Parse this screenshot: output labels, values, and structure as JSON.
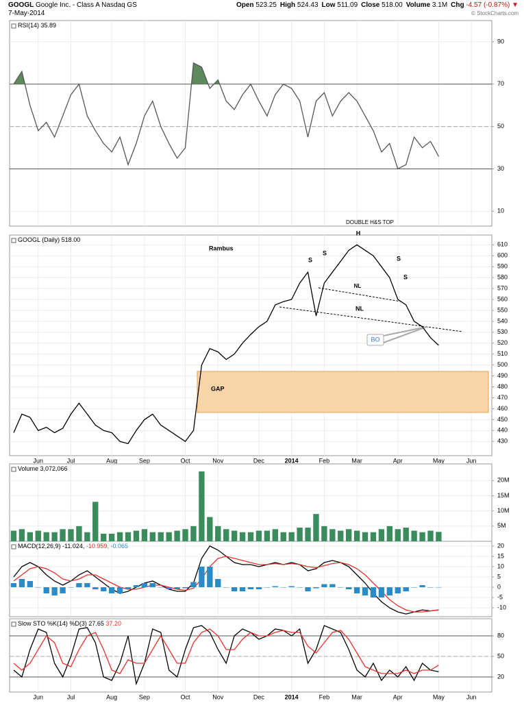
{
  "header": {
    "symbol": "GOOGL",
    "name": "Google Inc. - Class A Nasdaq GS",
    "date": "7-May-2014",
    "source": "© StockCharts.com",
    "quote": [
      {
        "label": "Open",
        "value": "523.25"
      },
      {
        "label": "High",
        "value": "524.43"
      },
      {
        "label": "Low",
        "value": "511.09"
      },
      {
        "label": "Close",
        "value": "518.00"
      },
      {
        "label": "Volume",
        "value": "3.1M"
      },
      {
        "label": "Chg",
        "value": "-4.57 (-0.87%)",
        "color": "#d01010"
      }
    ]
  },
  "chart_data": [
    {
      "type": "line",
      "title": "RSI(14) 35.89",
      "ylim": [
        3,
        100
      ],
      "yticks": [
        10,
        30,
        50,
        70,
        90
      ],
      "fill_color": "#5e8a5e",
      "reference_lines": [
        {
          "value": 70,
          "style": "solid",
          "fill": "above"
        },
        {
          "value": 50,
          "style": "dashed"
        },
        {
          "value": 30,
          "style": "solid",
          "fill": "below"
        }
      ],
      "series": [
        {
          "color": "#555555",
          "values": [
            70,
            76,
            60,
            48,
            52,
            45,
            55,
            65,
            70,
            55,
            48,
            42,
            38,
            45,
            32,
            42,
            55,
            62,
            50,
            42,
            35,
            40,
            80,
            78,
            68,
            72,
            62,
            58,
            65,
            70,
            62,
            55,
            65,
            70,
            68,
            62,
            45,
            62,
            66,
            55,
            62,
            66,
            62,
            55,
            48,
            38,
            42,
            30,
            32,
            45,
            40,
            43,
            35.89
          ]
        }
      ]
    },
    {
      "type": "line",
      "title": "GOOGL (Daily) 518.00",
      "grid": true,
      "categories": [
        null,
        null,
        null,
        "Jun",
        null,
        null,
        null,
        "Jul",
        null,
        null,
        null,
        null,
        "Aug",
        null,
        null,
        null,
        "Sep",
        null,
        null,
        null,
        null,
        "Oct",
        null,
        null,
        null,
        "Nov",
        null,
        null,
        null,
        null,
        "Dec",
        null,
        null,
        null,
        "2014",
        null,
        null,
        null,
        "Feb",
        null,
        null,
        null,
        "Mar",
        null,
        null,
        null,
        null,
        "Apr",
        null,
        null,
        null,
        null,
        "May",
        null,
        null,
        null,
        "Jun",
        null,
        null
      ],
      "ylim": [
        417,
        619
      ],
      "yticks": [
        430,
        440,
        450,
        460,
        470,
        480,
        490,
        500,
        510,
        520,
        530,
        540,
        550,
        560,
        570,
        580,
        590,
        600,
        610
      ],
      "annotations": [
        "Rambus",
        "DOUBLE H&S TOP",
        "H",
        "S",
        "S",
        "S",
        "S",
        "NL",
        "NL",
        "BO",
        "GAP"
      ],
      "series": [
        {
          "color": "#000000",
          "values": [
            438,
            455,
            452,
            440,
            443,
            438,
            442,
            455,
            465,
            455,
            445,
            440,
            438,
            430,
            428,
            440,
            450,
            455,
            445,
            440,
            435,
            430,
            440,
            500,
            515,
            512,
            505,
            510,
            520,
            528,
            535,
            540,
            555,
            558,
            560,
            575,
            585,
            545,
            575,
            585,
            595,
            605,
            610,
            605,
            600,
            590,
            580,
            560,
            555,
            540,
            535,
            525,
            518,
            null,
            null,
            null,
            null,
            null,
            null
          ]
        }
      ]
    },
    {
      "type": "bar",
      "title": "Volume 3,072,066",
      "color": "#3b8c5c",
      "ylim": [
        0,
        25.5
      ],
      "yticks": [
        {
          "value": 5,
          "label": "5M"
        },
        {
          "value": 10,
          "label": "10M"
        },
        {
          "value": 15,
          "label": "15M"
        },
        {
          "value": 20,
          "label": "20M"
        }
      ],
      "values": [
        3.5,
        4,
        3,
        3.5,
        3,
        3,
        4,
        4,
        5,
        3,
        13,
        2.5,
        2.5,
        3,
        3,
        3.5,
        4,
        3,
        3,
        3,
        3.5,
        4,
        5,
        23,
        8,
        5,
        4,
        3.5,
        3,
        3,
        3.5,
        3.5,
        4,
        3,
        3,
        4.5,
        4.5,
        9,
        5,
        4,
        3.5,
        4,
        3.5,
        3,
        3,
        4,
        5,
        4,
        4.5,
        3.5,
        3,
        3.5,
        3.1
      ]
    },
    {
      "type": "line",
      "title": "MACD(12,26,9)",
      "ylim": [
        -14.3,
        22.3
      ],
      "yticks": [
        -10,
        -5,
        0,
        5,
        10,
        15,
        20
      ],
      "series": [
        {
          "name": "-11.024,",
          "color": "#000000",
          "values": [
            5,
            10,
            12,
            10,
            6,
            3,
            1,
            3,
            6,
            8,
            5,
            2,
            -1,
            -3,
            -2,
            0,
            2,
            3,
            1,
            -1,
            -2,
            -2,
            2,
            14,
            20,
            18,
            15,
            12,
            11,
            11,
            10,
            11,
            12,
            11,
            12,
            11,
            8,
            9,
            12,
            13,
            12,
            10,
            6,
            2,
            -3,
            -7,
            -10,
            -12,
            -13,
            -12,
            -11,
            -11.5,
            -11.024
          ]
        },
        {
          "name": "-10.959,",
          "color": "#e8302a",
          "values": [
            3,
            6,
            9,
            10,
            9,
            7,
            4,
            3,
            4,
            6,
            6,
            4,
            2,
            0,
            -1,
            -1,
            0,
            1,
            1,
            0,
            -1,
            -1.5,
            -0.5,
            4,
            10,
            14,
            15,
            14,
            13,
            12,
            11,
            11,
            11.5,
            11,
            11.5,
            11,
            10,
            9.5,
            10.5,
            11.5,
            12,
            11,
            9,
            6,
            2,
            -2,
            -6,
            -9,
            -11,
            -12,
            -12,
            -11.5,
            -10.959
          ]
        },
        {
          "name": "-0.065",
          "color": "#2b8bc8",
          "type": "bar",
          "values": [
            2,
            4,
            3,
            0,
            -3,
            -4,
            -3,
            0,
            2,
            2,
            -1,
            -2,
            -3,
            -3,
            -1,
            1,
            2,
            2,
            0,
            -1,
            -1,
            -0.5,
            2.5,
            10,
            10,
            4,
            0,
            -2,
            -2,
            -1,
            -1,
            0,
            0.5,
            0,
            0.5,
            0,
            -2,
            -0.5,
            1.5,
            1.5,
            0,
            -1,
            -3,
            -4,
            -5,
            -5,
            -4,
            -3,
            -2,
            0,
            1,
            0,
            -0.065
          ]
        }
      ]
    },
    {
      "type": "line",
      "title": "Slow STO %K(14) %D(3)",
      "categories": [
        null,
        null,
        null,
        "Jun",
        null,
        null,
        null,
        "Jul",
        null,
        null,
        null,
        null,
        "Aug",
        null,
        null,
        null,
        "Sep",
        null,
        null,
        null,
        null,
        "Oct",
        null,
        null,
        null,
        "Nov",
        null,
        null,
        null,
        null,
        "Dec",
        null,
        null,
        null,
        "2014",
        null,
        null,
        null,
        "Feb",
        null,
        null,
        null,
        "Mar",
        null,
        null,
        null,
        null,
        "Apr",
        null,
        null,
        null,
        null,
        "May",
        null,
        null,
        null,
        "Jun",
        null,
        null
      ],
      "ylim": [
        -2,
        105
      ],
      "yticks": [
        20,
        50,
        80
      ],
      "reference_lines": [
        {
          "value": 80,
          "style": "solid"
        },
        {
          "value": 50,
          "style": "dashed"
        },
        {
          "value": 20,
          "style": "solid"
        }
      ],
      "series": [
        {
          "name": "27.65",
          "color": "#000000",
          "values": [
            30,
            20,
            60,
            90,
            85,
            40,
            20,
            50,
            90,
            92,
            70,
            20,
            15,
            40,
            80,
            10,
            40,
            90,
            85,
            30,
            20,
            60,
            92,
            95,
            85,
            60,
            40,
            80,
            90,
            85,
            75,
            80,
            90,
            88,
            80,
            90,
            40,
            60,
            95,
            90,
            85,
            60,
            30,
            20,
            40,
            15,
            30,
            20,
            35,
            15,
            40,
            30,
            27.65,
            null,
            null,
            null,
            null,
            null,
            null
          ]
        },
        {
          "name": "37.20",
          "color": "#e8302a",
          "values": [
            40,
            30,
            40,
            60,
            80,
            70,
            40,
            35,
            60,
            80,
            85,
            60,
            30,
            25,
            45,
            40,
            40,
            60,
            80,
            60,
            40,
            40,
            70,
            85,
            90,
            80,
            60,
            60,
            75,
            85,
            80,
            80,
            85,
            88,
            85,
            85,
            65,
            55,
            70,
            85,
            88,
            75,
            55,
            35,
            30,
            25,
            25,
            25,
            30,
            25,
            30,
            30,
            37.2,
            null,
            null,
            null,
            null,
            null,
            null
          ]
        }
      ]
    }
  ]
}
